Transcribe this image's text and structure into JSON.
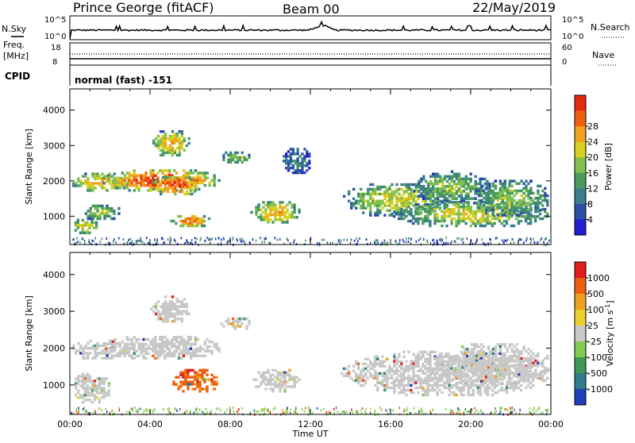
{
  "header": {
    "station": "Prince George (fitACF)",
    "beam": "Beam 00",
    "date": "22/May/2019"
  },
  "noise_panel": {
    "left_label": "N.Sky",
    "right_label": "N.Search",
    "top_tick": "10^5",
    "bottom_tick": "10^0"
  },
  "freq_panel": {
    "left_label_1": "Freq.",
    "left_label_2": "[MHz]",
    "right_label": "Nave",
    "left_ticks": [
      "18",
      "8"
    ],
    "right_ticks": [
      "60",
      "0"
    ]
  },
  "cpid": {
    "label": "CPID",
    "mode": "normal (fast) -151"
  },
  "chart_data": [
    {
      "type": "heatmap",
      "name": "power",
      "xlabel": "Time UT",
      "ylabel": "Slant Range [km]",
      "xlim": [
        0,
        24
      ],
      "ylim": [
        200,
        4600
      ],
      "y_ticks": [
        1000,
        2000,
        3000,
        4000
      ],
      "colorbar": {
        "label": "Power [dB]",
        "ticks": [
          "4",
          "8",
          "12",
          "16",
          "20",
          "24",
          "28"
        ],
        "colors": [
          "#1e1ed2",
          "#2d4ea7",
          "#3b7d8b",
          "#4a9a5e",
          "#80c050",
          "#d8d020",
          "#f2a020",
          "#ee6010",
          "#e62a10"
        ]
      },
      "echo_regions": [
        {
          "t0": 0.0,
          "t1": 3.0,
          "r0": 1700,
          "r1": 2300,
          "level": 6
        },
        {
          "t0": 1.5,
          "t1": 7.5,
          "r0": 1700,
          "r1": 2400,
          "level": 8
        },
        {
          "t0": 4.0,
          "t1": 6.5,
          "r0": 1600,
          "r1": 2200,
          "level": 8
        },
        {
          "t0": 0.0,
          "t1": 1.5,
          "r0": 500,
          "r1": 1000,
          "level": 5
        },
        {
          "t0": 0.5,
          "t1": 2.5,
          "r0": 900,
          "r1": 1400,
          "level": 4
        },
        {
          "t0": 4.0,
          "t1": 6.0,
          "r0": 2700,
          "r1": 3500,
          "level": 6
        },
        {
          "t0": 5.0,
          "t1": 7.0,
          "r0": 700,
          "r1": 1100,
          "level": 7
        },
        {
          "t0": 7.5,
          "t1": 9.0,
          "r0": 2500,
          "r1": 2900,
          "level": 4
        },
        {
          "t0": 9.0,
          "t1": 11.5,
          "r0": 800,
          "r1": 1500,
          "level": 6
        },
        {
          "t0": 10.5,
          "t1": 12.0,
          "r0": 2200,
          "r1": 3000,
          "level": 2
        },
        {
          "t0": 13.5,
          "t1": 19.0,
          "r0": 1000,
          "r1": 2000,
          "level": 5
        },
        {
          "t0": 16.0,
          "t1": 24.0,
          "r0": 700,
          "r1": 1500,
          "level": 5
        },
        {
          "t0": 17.0,
          "t1": 21.0,
          "r0": 1400,
          "r1": 2300,
          "level": 4
        },
        {
          "t0": 20.0,
          "t1": 24.0,
          "r0": 1000,
          "r1": 2100,
          "level": 4
        }
      ]
    },
    {
      "type": "heatmap",
      "name": "velocity",
      "xlabel": "Time UT",
      "ylabel": "Slant Range [km]",
      "xlim": [
        0,
        24
      ],
      "ylim": [
        200,
        4600
      ],
      "y_ticks": [
        1000,
        2000,
        3000,
        4000
      ],
      "x_ticks": [
        "00:00",
        "04:00",
        "08:00",
        "12:00",
        "16:00",
        "20:00",
        "00:00"
      ],
      "colorbar": {
        "label": "Velocity [m s-1]",
        "ticks": [
          "1000",
          "500",
          "100",
          "25",
          "-25",
          "-100",
          "-500",
          "-1000"
        ],
        "colors": [
          "#1f3fb8",
          "#2e7c8c",
          "#3c9a55",
          "#80cc50",
          "#c8c8c8",
          "#e8d030",
          "#f0a020",
          "#ee6010",
          "#e41c1c"
        ]
      },
      "echo_regions": [
        {
          "t0": 0.0,
          "t1": 3.0,
          "r0": 1700,
          "r1": 2300,
          "level": 4
        },
        {
          "t0": 1.5,
          "t1": 7.5,
          "r0": 1700,
          "r1": 2400,
          "level": 4
        },
        {
          "t0": 0.0,
          "t1": 2.0,
          "r0": 500,
          "r1": 1400,
          "level": 4
        },
        {
          "t0": 4.0,
          "t1": 6.0,
          "r0": 2700,
          "r1": 3500,
          "level": 4
        },
        {
          "t0": 5.0,
          "t1": 7.5,
          "r0": 800,
          "r1": 1500,
          "level": 7
        },
        {
          "t0": 7.5,
          "t1": 9.0,
          "r0": 2500,
          "r1": 2900,
          "level": 4
        },
        {
          "t0": 9.0,
          "t1": 11.5,
          "r0": 800,
          "r1": 1500,
          "level": 4
        },
        {
          "t0": 13.5,
          "t1": 24.0,
          "r0": 700,
          "r1": 2000,
          "level": 4
        },
        {
          "t0": 18.0,
          "t1": 24.0,
          "r0": 1000,
          "r1": 2200,
          "level": 4
        }
      ]
    }
  ]
}
